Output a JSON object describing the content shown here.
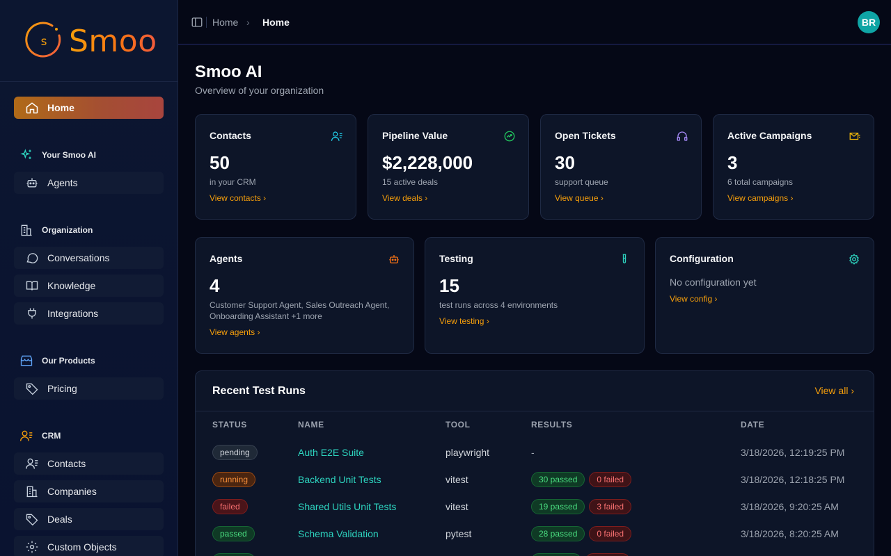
{
  "brand": {
    "logo_text": "Smoo",
    "logo_letter": "s"
  },
  "sidebar": {
    "home": "Home",
    "sections": {
      "your_smoo": "Your Smoo AI",
      "organization": "Organization",
      "products": "Our Products",
      "crm": "CRM"
    },
    "items": {
      "agents": "Agents",
      "conversations": "Conversations",
      "knowledge": "Knowledge",
      "integrations": "Integrations",
      "pricing": "Pricing",
      "contacts": "Contacts",
      "companies": "Companies",
      "deals": "Deals",
      "custom_objects": "Custom Objects"
    }
  },
  "topbar": {
    "crumb1": "Home",
    "separator": "›",
    "crumb2": "Home",
    "avatar": "BR"
  },
  "page": {
    "title": "Smoo AI",
    "subtitle": "Overview of your organization"
  },
  "stats": [
    {
      "title": "Contacts",
      "value": "50",
      "desc": "in your CRM",
      "link": "View contacts ›",
      "icon": "contacts-icon"
    },
    {
      "title": "Pipeline Value",
      "value": "$2,228,000",
      "desc": "15 active deals",
      "link": "View deals ›",
      "icon": "trending-icon"
    },
    {
      "title": "Open Tickets",
      "value": "30",
      "desc": "support queue",
      "link": "View queue ›",
      "icon": "headset-icon"
    },
    {
      "title": "Active Campaigns",
      "value": "3",
      "desc": "6 total campaigns",
      "link": "View campaigns ›",
      "icon": "mail-send-icon"
    }
  ],
  "cards": {
    "agents": {
      "title": "Agents",
      "value": "4",
      "desc1": "Customer Support Agent, Sales Outreach Agent,",
      "desc2": "Onboarding Assistant +1 more",
      "link": "View agents ›"
    },
    "testing": {
      "title": "Testing",
      "value": "15",
      "desc": "test runs across 4 environments",
      "link": "View testing ›"
    },
    "config": {
      "title": "Configuration",
      "desc": "No configuration yet",
      "link": "View config ›"
    }
  },
  "test_runs": {
    "title": "Recent Test Runs",
    "view_all": "View all ›",
    "headers": [
      "STATUS",
      "NAME",
      "TOOL",
      "RESULTS",
      "DATE"
    ],
    "rows": [
      {
        "status": "pending",
        "name": "Auth E2E Suite",
        "tool": "playwright",
        "results": "-",
        "passed": "",
        "failed": "",
        "date": "3/18/2026, 12:19:25 PM"
      },
      {
        "status": "running",
        "name": "Backend Unit Tests",
        "tool": "vitest",
        "results": "",
        "passed": "30 passed",
        "failed": "0 failed",
        "date": "3/18/2026, 12:18:25 PM"
      },
      {
        "status": "failed",
        "name": "Shared Utils Unit Tests",
        "tool": "vitest",
        "results": "",
        "passed": "19 passed",
        "failed": "3 failed",
        "date": "3/18/2026, 9:20:25 AM"
      },
      {
        "status": "passed",
        "name": "Schema Validation",
        "tool": "pytest",
        "results": "",
        "passed": "28 passed",
        "failed": "0 failed",
        "date": "3/18/2026, 8:20:25 AM"
      }
    ]
  }
}
